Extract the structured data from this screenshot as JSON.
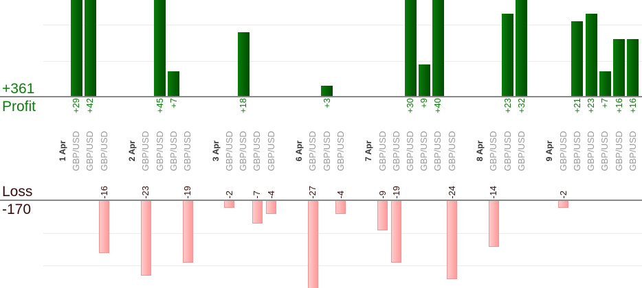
{
  "summary": {
    "profit_total": "+361",
    "profit_label": "Profit",
    "loss_label": "Loss",
    "loss_total": "-170"
  },
  "colors": {
    "profit": "#0a7d0a",
    "loss": "#ff9a9a",
    "loss_text": "#3a0a0a"
  },
  "chart_data": {
    "type": "bar",
    "title": "",
    "profit_ylim": [
      0,
      26
    ],
    "loss_ylim": [
      0,
      27
    ],
    "groups": [
      {
        "date": "1 Apr",
        "trades": [
          {
            "instrument": "GBP/USD",
            "value": 29,
            "label": "+29"
          },
          {
            "instrument": "GBP/USD",
            "value": 42,
            "label": "+42"
          },
          {
            "instrument": "GBP/USD",
            "value": -16,
            "label": "-16"
          }
        ]
      },
      {
        "date": "2 Apr",
        "trades": [
          {
            "instrument": "GBP/USD",
            "value": -23,
            "label": "-23"
          },
          {
            "instrument": "GBP/USD",
            "value": 45,
            "label": "+45"
          },
          {
            "instrument": "GBP/USD",
            "value": 7,
            "label": "+7"
          },
          {
            "instrument": "GBP/USD",
            "value": -19,
            "label": "-19"
          }
        ]
      },
      {
        "date": "3 Apr",
        "trades": [
          {
            "instrument": "GBP/USD",
            "value": -2,
            "label": "-2"
          },
          {
            "instrument": "GBP/USD",
            "value": 18,
            "label": "+18"
          },
          {
            "instrument": "GBP/USD",
            "value": -7,
            "label": "-7"
          },
          {
            "instrument": "GBP/USD",
            "value": -4,
            "label": "-4"
          }
        ]
      },
      {
        "date": "6 Apr",
        "trades": [
          {
            "instrument": "GBP/USD",
            "value": -27,
            "label": "-27"
          },
          {
            "instrument": "GBP/USD",
            "value": 3,
            "label": "+3"
          },
          {
            "instrument": "GBP/USD",
            "value": -4,
            "label": "-4"
          }
        ]
      },
      {
        "date": "7 Apr",
        "trades": [
          {
            "instrument": "GBP/USD",
            "value": -9,
            "label": "-9"
          },
          {
            "instrument": "GBP/USD",
            "value": -19,
            "label": "-19"
          },
          {
            "instrument": "GBP/USD",
            "value": 30,
            "label": "+30"
          },
          {
            "instrument": "GBP/USD",
            "value": 9,
            "label": "+9"
          },
          {
            "instrument": "GBP/USD",
            "value": 40,
            "label": "+40"
          },
          {
            "instrument": "GBP/USD",
            "value": -24,
            "label": "-24"
          }
        ]
      },
      {
        "date": "8 Apr",
        "trades": [
          {
            "instrument": "GBP/USD",
            "value": -14,
            "label": "-14"
          },
          {
            "instrument": "GBP/USD",
            "value": 23,
            "label": "+23"
          },
          {
            "instrument": "GBP/USD",
            "value": 32,
            "label": "+32"
          }
        ]
      },
      {
        "date": "9 Apr",
        "trades": [
          {
            "instrument": "GBP/USD",
            "value": -2,
            "label": "-2"
          },
          {
            "instrument": "GBP/USD",
            "value": 21,
            "label": "+21"
          },
          {
            "instrument": "GBP/USD",
            "value": 23,
            "label": "+23"
          },
          {
            "instrument": "GBP/USD",
            "value": 7,
            "label": "+7"
          },
          {
            "instrument": "GBP/USD",
            "value": 16,
            "label": "+16"
          },
          {
            "instrument": "GBP/USD",
            "value": 16,
            "label": "+16"
          }
        ]
      }
    ]
  }
}
